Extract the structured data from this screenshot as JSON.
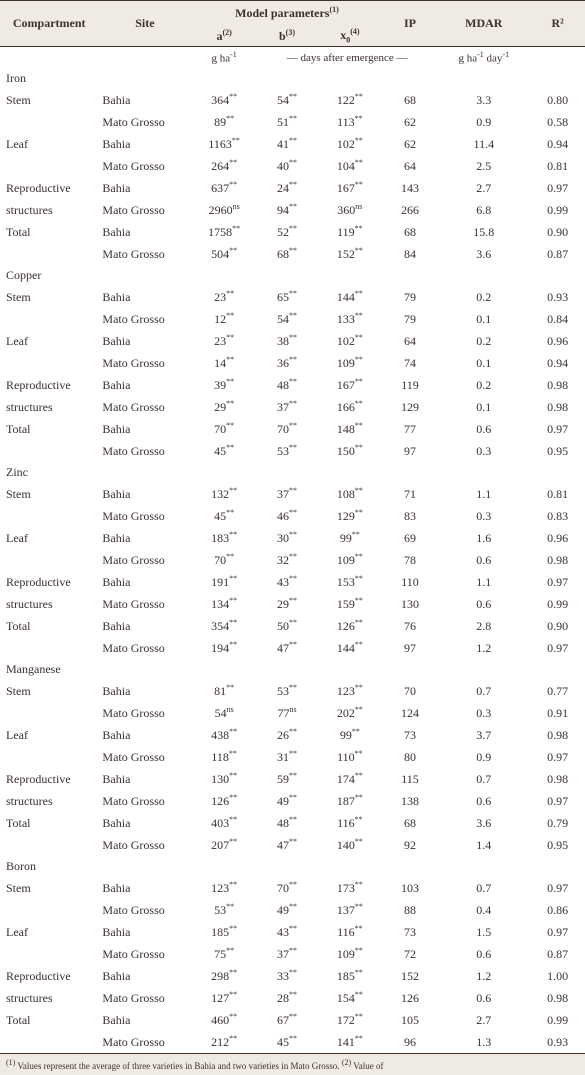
{
  "headers": {
    "compartment": "Compartment",
    "site": "Site",
    "model": "Model parameters",
    "a": "a",
    "b": "b",
    "x0": "x",
    "ip": "IP",
    "mdar": "MDAR",
    "r2": "R²",
    "sup1": "(1)",
    "sup2": "(2)",
    "sup3": "(3)",
    "sup4": "(4)",
    "sub0": "0",
    "unit_a": "g ha",
    "unit_a_sup": "-1",
    "unit_days": "— days after emergence —",
    "unit_mdar": "g ha",
    "unit_mdar_sup1": "-1",
    "unit_mdar_day": " day",
    "unit_mdar_sup2": "-1"
  },
  "sections": [
    {
      "name": "Iron",
      "rows": [
        {
          "c": "Stem",
          "s": "Bahia",
          "a": "364",
          "as": "**",
          "b": "54",
          "bs": "**",
          "x": "122",
          "xs": "**",
          "ip": "68",
          "m": "3.3",
          "r": "0.80"
        },
        {
          "c": "",
          "s": "Mato Grosso",
          "a": "89",
          "as": "**",
          "b": "51",
          "bs": "**",
          "x": "113",
          "xs": "**",
          "ip": "62",
          "m": "0.9",
          "r": "0.58"
        },
        {
          "c": "Leaf",
          "s": "Bahia",
          "a": "1163",
          "as": "**",
          "b": "41",
          "bs": "**",
          "x": "102",
          "xs": "**",
          "ip": "62",
          "m": "11.4",
          "r": "0.94"
        },
        {
          "c": "",
          "s": "Mato Grosso",
          "a": "264",
          "as": "**",
          "b": "40",
          "bs": "**",
          "x": "104",
          "xs": "**",
          "ip": "64",
          "m": "2.5",
          "r": "0.81"
        },
        {
          "c": "Reproductive",
          "s": "Bahia",
          "a": "637",
          "as": "**",
          "b": "24",
          "bs": "**",
          "x": "167",
          "xs": "**",
          "ip": "143",
          "m": "2.7",
          "r": "0.97"
        },
        {
          "c": "structures",
          "s": "Mato Grosso",
          "a": "2960",
          "as": "ns",
          "b": "94",
          "bs": "**",
          "x": "360",
          "xs": "ns",
          "ip": "266",
          "m": "6.8",
          "r": "0.99"
        },
        {
          "c": "Total",
          "s": "Bahia",
          "a": "1758",
          "as": "**",
          "b": "52",
          "bs": "**",
          "x": "119",
          "xs": "**",
          "ip": "68",
          "m": "15.8",
          "r": "0.90"
        },
        {
          "c": "",
          "s": "Mato Grosso",
          "a": "504",
          "as": "**",
          "b": "68",
          "bs": "**",
          "x": "152",
          "xs": "**",
          "ip": "84",
          "m": "3.6",
          "r": "0.87"
        }
      ]
    },
    {
      "name": "Copper",
      "rows": [
        {
          "c": "Stem",
          "s": "Bahia",
          "a": "23",
          "as": "**",
          "b": "65",
          "bs": "**",
          "x": "144",
          "xs": "**",
          "ip": "79",
          "m": "0.2",
          "r": "0.93"
        },
        {
          "c": "",
          "s": "Mato Grosso",
          "a": "12",
          "as": "**",
          "b": "54",
          "bs": "**",
          "x": "133",
          "xs": "**",
          "ip": "79",
          "m": "0.1",
          "r": "0.84"
        },
        {
          "c": "Leaf",
          "s": "Bahia",
          "a": "23",
          "as": "**",
          "b": "38",
          "bs": "**",
          "x": "102",
          "xs": "**",
          "ip": "64",
          "m": "0.2",
          "r": "0.96"
        },
        {
          "c": "",
          "s": "Mato Grosso",
          "a": "14",
          "as": "**",
          "b": "36",
          "bs": "**",
          "x": "109",
          "xs": "**",
          "ip": "74",
          "m": "0.1",
          "r": "0.94"
        },
        {
          "c": "Reproductive",
          "s": "Bahia",
          "a": "39",
          "as": "**",
          "b": "48",
          "bs": "**",
          "x": "167",
          "xs": "**",
          "ip": "119",
          "m": "0.2",
          "r": "0.98"
        },
        {
          "c": "structures",
          "s": "Mato Grosso",
          "a": "29",
          "as": "**",
          "b": "37",
          "bs": "**",
          "x": "166",
          "xs": "**",
          "ip": "129",
          "m": "0.1",
          "r": "0.98"
        },
        {
          "c": "Total",
          "s": "Bahia",
          "a": "70",
          "as": "**",
          "b": "70",
          "bs": "**",
          "x": "148",
          "xs": "**",
          "ip": "77",
          "m": "0.6",
          "r": "0.97"
        },
        {
          "c": "",
          "s": "Mato Grosso",
          "a": "45",
          "as": "**",
          "b": "53",
          "bs": "**",
          "x": "150",
          "xs": "**",
          "ip": "97",
          "m": "0.3",
          "r": "0.95"
        }
      ]
    },
    {
      "name": "Zinc",
      "rows": [
        {
          "c": "Stem",
          "s": "Bahia",
          "a": "132",
          "as": "**",
          "b": "37",
          "bs": "**",
          "x": "108",
          "xs": "**",
          "ip": "71",
          "m": "1.1",
          "r": "0.81"
        },
        {
          "c": "",
          "s": "Mato Grosso",
          "a": "45",
          "as": "**",
          "b": "46",
          "bs": "**",
          "x": "129",
          "xs": "**",
          "ip": "83",
          "m": "0.3",
          "r": "0.83"
        },
        {
          "c": "Leaf",
          "s": "Bahia",
          "a": "183",
          "as": "**",
          "b": "30",
          "bs": "**",
          "x": "99",
          "xs": "**",
          "ip": "69",
          "m": "1.6",
          "r": "0.96"
        },
        {
          "c": "",
          "s": "Mato Grosso",
          "a": "70",
          "as": "**",
          "b": "32",
          "bs": "**",
          "x": "109",
          "xs": "**",
          "ip": "78",
          "m": "0.6",
          "r": "0.98"
        },
        {
          "c": "Reproductive",
          "s": "Bahia",
          "a": "191",
          "as": "**",
          "b": "43",
          "bs": "**",
          "x": "153",
          "xs": "**",
          "ip": "110",
          "m": "1.1",
          "r": "0.97"
        },
        {
          "c": "structures",
          "s": "Mato Grosso",
          "a": "134",
          "as": "**",
          "b": "29",
          "bs": "**",
          "x": "159",
          "xs": "**",
          "ip": "130",
          "m": "0.6",
          "r": "0.99"
        },
        {
          "c": "Total",
          "s": "Bahia",
          "a": "354",
          "as": "**",
          "b": "50",
          "bs": "**",
          "x": "126",
          "xs": "**",
          "ip": "76",
          "m": "2.8",
          "r": "0.90"
        },
        {
          "c": "",
          "s": "Mato Grosso",
          "a": "194",
          "as": "**",
          "b": "47",
          "bs": "**",
          "x": "144",
          "xs": "**",
          "ip": "97",
          "m": "1.2",
          "r": "0.97"
        }
      ]
    },
    {
      "name": "Manganese",
      "rows": [
        {
          "c": "Stem",
          "s": "Bahia",
          "a": "81",
          "as": "**",
          "b": "53",
          "bs": "**",
          "x": "123",
          "xs": "**",
          "ip": "70",
          "m": "0.7",
          "r": "0.77"
        },
        {
          "c": "",
          "s": "Mato Grosso",
          "a": "54",
          "as": "ns",
          "b": "77",
          "bs": "ns",
          "x": "202",
          "xs": "**",
          "ip": "124",
          "m": "0.3",
          "r": "0.91"
        },
        {
          "c": "Leaf",
          "s": "Bahia",
          "a": "438",
          "as": "**",
          "b": "26",
          "bs": "**",
          "x": "99",
          "xs": "**",
          "ip": "73",
          "m": "3.7",
          "r": "0.98"
        },
        {
          "c": "",
          "s": "Mato Grosso",
          "a": "118",
          "as": "**",
          "b": "31",
          "bs": "**",
          "x": "110",
          "xs": "**",
          "ip": "80",
          "m": "0.9",
          "r": "0.97"
        },
        {
          "c": "Reproductive",
          "s": "Bahia",
          "a": "130",
          "as": "**",
          "b": "59",
          "bs": "**",
          "x": "174",
          "xs": "**",
          "ip": "115",
          "m": "0.7",
          "r": "0.98"
        },
        {
          "c": "structures",
          "s": "Mato Grosso",
          "a": "126",
          "as": "**",
          "b": "49",
          "bs": "**",
          "x": "187",
          "xs": "**",
          "ip": "138",
          "m": "0.6",
          "r": "0.97"
        },
        {
          "c": "Total",
          "s": "Bahia",
          "a": "403",
          "as": "**",
          "b": "48",
          "bs": "**",
          "x": "116",
          "xs": "**",
          "ip": "68",
          "m": "3.6",
          "r": "0.79"
        },
        {
          "c": "",
          "s": "Mato Grosso",
          "a": "207",
          "as": "**",
          "b": "47",
          "bs": "**",
          "x": "140",
          "xs": "**",
          "ip": "92",
          "m": "1.4",
          "r": "0.95"
        }
      ]
    },
    {
      "name": "Boron",
      "rows": [
        {
          "c": "Stem",
          "s": "Bahia",
          "a": "123",
          "as": "**",
          "b": "70",
          "bs": "**",
          "x": "173",
          "xs": "**",
          "ip": "103",
          "m": "0.7",
          "r": "0.97"
        },
        {
          "c": "",
          "s": "Mato Grosso",
          "a": "53",
          "as": "**",
          "b": "49",
          "bs": "**",
          "x": "137",
          "xs": "**",
          "ip": "88",
          "m": "0.4",
          "r": "0.86"
        },
        {
          "c": "Leaf",
          "s": "Bahia",
          "a": "185",
          "as": "**",
          "b": "43",
          "bs": "**",
          "x": "116",
          "xs": "**",
          "ip": "73",
          "m": "1.5",
          "r": "0.97"
        },
        {
          "c": "",
          "s": "Mato Grosso",
          "a": "75",
          "as": "**",
          "b": "37",
          "bs": "**",
          "x": "109",
          "xs": "**",
          "ip": "72",
          "m": "0.6",
          "r": "0.87"
        },
        {
          "c": "Reproductive",
          "s": "Bahia",
          "a": "298",
          "as": "**",
          "b": "33",
          "bs": "**",
          "x": "185",
          "xs": "**",
          "ip": "152",
          "m": "1.2",
          "r": "1.00"
        },
        {
          "c": "structures",
          "s": "Mato Grosso",
          "a": "127",
          "as": "**",
          "b": "28",
          "bs": "**",
          "x": "154",
          "xs": "**",
          "ip": "126",
          "m": "0.6",
          "r": "0.98"
        },
        {
          "c": "Total",
          "s": "Bahia",
          "a": "460",
          "as": "**",
          "b": "67",
          "bs": "**",
          "x": "172",
          "xs": "**",
          "ip": "105",
          "m": "2.7",
          "r": "0.99"
        },
        {
          "c": "",
          "s": "Mato Grosso",
          "a": "212",
          "as": "**",
          "b": "45",
          "bs": "**",
          "x": "141",
          "xs": "**",
          "ip": "96",
          "m": "1.3",
          "r": "0.93"
        }
      ]
    }
  ],
  "footnote": {
    "sup1": "(1)",
    "t1": " Values represent the average of three varieties in Bahia and two varieties in Mato Grosso. ",
    "sup2": "(2)",
    "t2": " Value of"
  }
}
